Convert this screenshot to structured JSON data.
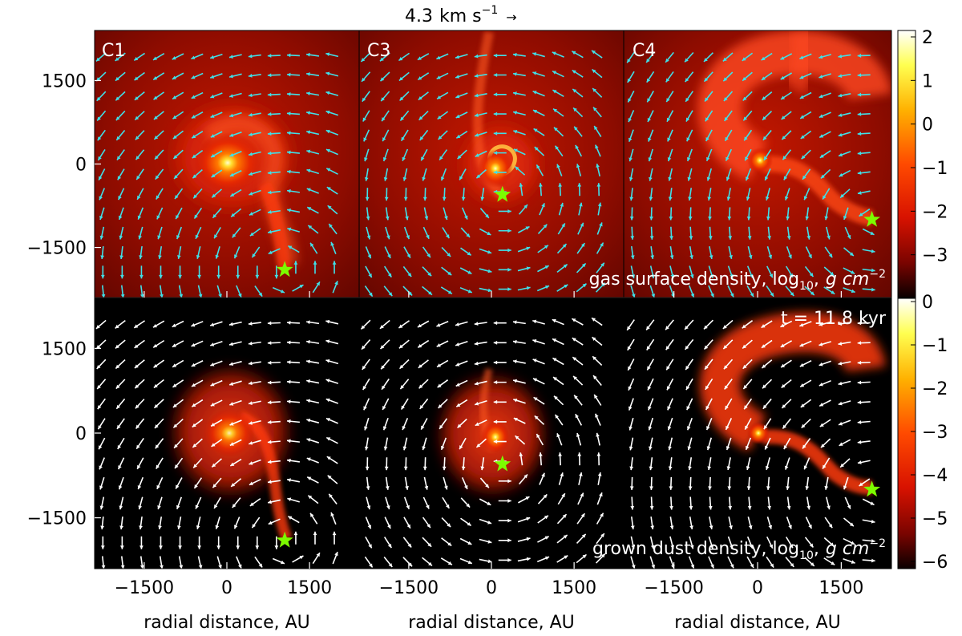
{
  "colors": {
    "background": "#000000",
    "gas_arrows": "#40e0e8",
    "dust_arrows": "#ffffff",
    "star_marker": "#7cfc00",
    "panel_label_text": "#ffffff"
  },
  "figure": {
    "velocity_key": {
      "value": "4.3",
      "unit": "km s",
      "exponent": "−1",
      "arrow_glyph": "→"
    },
    "panel_labels": [
      "C1",
      "C3",
      "C4"
    ],
    "time_label": "t = 11.8 kyr",
    "gas_label": {
      "prefix": "gas surface density, log",
      "subscript": "10",
      "sep": ",",
      "units": "g cm",
      "exponent": "−2"
    },
    "dust_label": {
      "prefix": "grown dust density, log",
      "subscript": "10",
      "sep": ",",
      "units": "g cm",
      "exponent": "−2"
    },
    "xlabel": "radial distance, AU",
    "xticks": [
      "−1500",
      "0",
      "1500"
    ],
    "yticks": [
      "1500",
      "0",
      "−1500"
    ],
    "gas_colorbar_ticks": [
      "2",
      "1",
      "0",
      "−1",
      "−2",
      "−3"
    ],
    "dust_colorbar_ticks": [
      "0",
      "−1",
      "−2",
      "−3",
      "−4",
      "−5",
      "−6"
    ]
  },
  "chart_data": {
    "type": "heatmap",
    "colormap": "hot",
    "x_range_au": [
      -2400,
      2400
    ],
    "y_range_au": [
      -2400,
      2400
    ],
    "x_ticks_au": [
      -1500,
      0,
      1500
    ],
    "y_ticks_au": [
      1500,
      0,
      -1500
    ],
    "rows": [
      {
        "quantity": "gas surface density",
        "scale": "log10",
        "units": "g cm^-2",
        "colorbar_range": [
          -4,
          2
        ],
        "arrow_color": "cyan"
      },
      {
        "quantity": "grown dust density",
        "scale": "log10",
        "units": "g cm^-2",
        "colorbar_range": [
          -6,
          0
        ],
        "arrow_color": "white"
      }
    ],
    "panels": [
      {
        "label": "C1",
        "central_peak_au": [
          0,
          0
        ],
        "star_position_au": [
          1050,
          -1900
        ]
      },
      {
        "label": "C3",
        "central_peak_au": [
          0,
          0
        ],
        "star_position_au": [
          200,
          -550
        ]
      },
      {
        "label": "C4",
        "central_peak_au": [
          0,
          0
        ],
        "star_position_au": [
          2050,
          -1000
        ]
      }
    ],
    "velocity_reference_km_s": 4.3,
    "time_kyr": 11.8
  }
}
